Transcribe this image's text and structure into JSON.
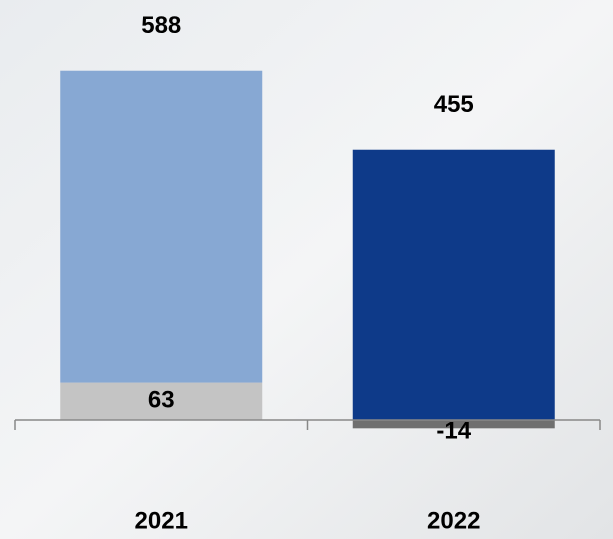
{
  "chart_data": {
    "type": "stacked-bar",
    "categories": [
      "2021",
      "2022"
    ],
    "series": [
      {
        "colors": [
          "#c4c4c4",
          "#6f6f6f"
        ],
        "values": [
          63,
          -14
        ]
      },
      {
        "colors": [
          "#87a8d3",
          "#0e3a89"
        ],
        "values": [
          525,
          455
        ]
      }
    ],
    "totals": [
      588,
      455
    ]
  }
}
